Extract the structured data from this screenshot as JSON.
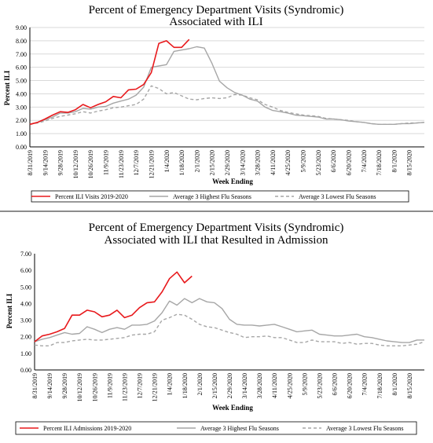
{
  "chart_data": [
    {
      "type": "line",
      "title": "Percent of Emergency Department Visits (Syndromic)",
      "subtitle": "Associated with ILI",
      "xlabel": "Week Ending",
      "ylabel": "Percent ILI",
      "ylim": [
        0,
        9
      ],
      "yticks": [
        "0.00",
        "1.00",
        "2.00",
        "3.00",
        "4.00",
        "5.00",
        "6.00",
        "7.00",
        "8.00",
        "9.00"
      ],
      "xticks": [
        "8/31/2019",
        "9/14/2019",
        "9/28/2019",
        "10/12/2019",
        "10/26/2019",
        "11/9/2019",
        "11/23/2019",
        "12/7/2019",
        "12/21/2019",
        "1/4/2020",
        "1/18/2020",
        "2/1/2020",
        "2/15/2020",
        "2/29/2020",
        "3/14/2020",
        "3/28/2020",
        "4/11/2020",
        "4/25/2020",
        "5/9/2020",
        "5/23/2020",
        "6/6/2020",
        "6/20/2020",
        "7/4/2020",
        "7/18/2020",
        "8/1/2020",
        "8/15/2020"
      ],
      "x_count": 53,
      "grid": true,
      "legend_position": "bottom",
      "series": [
        {
          "name": "Percent ILI Visits 2019-2020",
          "color": "#e8191c",
          "dash": "solid",
          "values": [
            1.7,
            1.85,
            2.1,
            2.4,
            2.65,
            2.6,
            2.8,
            3.2,
            2.95,
            3.2,
            3.4,
            3.8,
            3.7,
            4.3,
            4.35,
            4.7,
            5.6,
            7.8,
            8.0,
            7.5,
            7.5,
            8.1
          ]
        },
        {
          "name": "Average 3 Highest Flu Seasons",
          "color": "#a6a6a6",
          "dash": "solid",
          "values": [
            1.7,
            1.85,
            2.05,
            2.25,
            2.55,
            2.55,
            2.65,
            2.9,
            2.85,
            3.0,
            3.05,
            3.3,
            3.45,
            3.6,
            3.9,
            4.5,
            6.0,
            6.1,
            6.2,
            7.2,
            7.3,
            7.4,
            7.55,
            7.45,
            6.3,
            4.95,
            4.45,
            4.1,
            3.9,
            3.6,
            3.45,
            3.0,
            2.75,
            2.65,
            2.55,
            2.4,
            2.35,
            2.3,
            2.25,
            2.1,
            2.1,
            2.05,
            1.95,
            1.9,
            1.85,
            1.75,
            1.7,
            1.7,
            1.7,
            1.75,
            1.75,
            1.8,
            1.85
          ]
        },
        {
          "name": "Average 3 Lowest Flu Seasons",
          "color": "#a6a6a6",
          "dash": "dashed",
          "values": [
            1.7,
            1.8,
            1.95,
            2.15,
            2.3,
            2.4,
            2.5,
            2.65,
            2.55,
            2.7,
            2.8,
            2.95,
            3.0,
            3.1,
            3.2,
            3.6,
            4.6,
            4.4,
            4.0,
            4.1,
            3.85,
            3.6,
            3.55,
            3.65,
            3.7,
            3.65,
            3.7,
            3.95,
            3.9,
            3.7,
            3.55,
            3.2,
            3.0,
            2.75,
            2.6,
            2.5,
            2.4,
            2.35,
            2.3,
            2.15,
            2.1,
            2.05,
            2.0,
            1.9,
            1.85,
            1.75,
            1.7,
            1.7,
            1.7,
            1.75,
            1.8,
            1.8,
            1.85
          ]
        }
      ]
    },
    {
      "type": "line",
      "title": "Percent of Emergency Department Visits (Syndromic)",
      "subtitle": "Associated with ILI that Resulted in Admission",
      "xlabel": "Week Ending",
      "ylabel": "Percent ILI",
      "ylim": [
        0,
        7
      ],
      "yticks": [
        "0.00",
        "1.00",
        "2.00",
        "3.00",
        "4.00",
        "5.00",
        "6.00",
        "7.00"
      ],
      "xticks": [
        "8/31/2019",
        "9/14/2019",
        "9/28/2019",
        "10/12/2019",
        "10/26/2019",
        "11/9/2019",
        "11/23/2019",
        "12/7/2019",
        "12/21/2019",
        "1/4/2020",
        "1/18/2020",
        "2/1/2020",
        "2/15/2020",
        "2/29/2020",
        "3/14/2020",
        "3/28/2020",
        "4/11/2020",
        "4/25/2020",
        "5/9/2020",
        "5/23/2020",
        "6/6/2020",
        "6/20/2020",
        "7/4/2020",
        "7/18/2020",
        "8/1/2020",
        "8/15/2020"
      ],
      "x_count": 53,
      "grid": false,
      "legend_position": "bottom",
      "series": [
        {
          "name": "Percent ILI Admissions 2019-2020",
          "color": "#e8191c",
          "dash": "solid",
          "values": [
            1.7,
            2.05,
            2.15,
            2.3,
            2.5,
            3.3,
            3.3,
            3.6,
            3.5,
            3.2,
            3.3,
            3.6,
            3.15,
            3.3,
            3.75,
            4.05,
            4.1,
            4.7,
            5.5,
            5.9,
            5.25,
            5.65
          ]
        },
        {
          "name": "Average 3 Highest Flu Seasons",
          "color": "#a6a6a6",
          "dash": "solid",
          "values": [
            1.7,
            1.85,
            1.95,
            2.1,
            2.25,
            2.15,
            2.2,
            2.6,
            2.45,
            2.25,
            2.45,
            2.55,
            2.45,
            2.7,
            2.7,
            2.75,
            2.95,
            3.45,
            4.15,
            3.9,
            4.3,
            4.05,
            4.3,
            4.1,
            4.05,
            3.7,
            3.05,
            2.75,
            2.7,
            2.7,
            2.65,
            2.7,
            2.75,
            2.6,
            2.45,
            2.3,
            2.35,
            2.4,
            2.15,
            2.1,
            2.05,
            2.05,
            2.1,
            2.15,
            2.0,
            1.95,
            1.85,
            1.75,
            1.7,
            1.65,
            1.65,
            1.8,
            1.8
          ]
        },
        {
          "name": "Average 3 Lowest Flu Seasons",
          "color": "#a6a6a6",
          "dash": "dashed",
          "values": [
            1.5,
            1.45,
            1.45,
            1.65,
            1.65,
            1.75,
            1.8,
            1.85,
            1.8,
            1.8,
            1.85,
            1.9,
            1.95,
            2.1,
            2.15,
            2.15,
            2.3,
            3.0,
            3.15,
            3.35,
            3.3,
            3.05,
            2.75,
            2.6,
            2.55,
            2.4,
            2.25,
            2.15,
            1.95,
            2.0,
            2.0,
            2.05,
            1.95,
            1.95,
            1.8,
            1.65,
            1.65,
            1.8,
            1.7,
            1.7,
            1.7,
            1.6,
            1.65,
            1.55,
            1.6,
            1.6,
            1.5,
            1.45,
            1.45,
            1.45,
            1.5,
            1.55,
            1.7
          ]
        }
      ]
    }
  ]
}
